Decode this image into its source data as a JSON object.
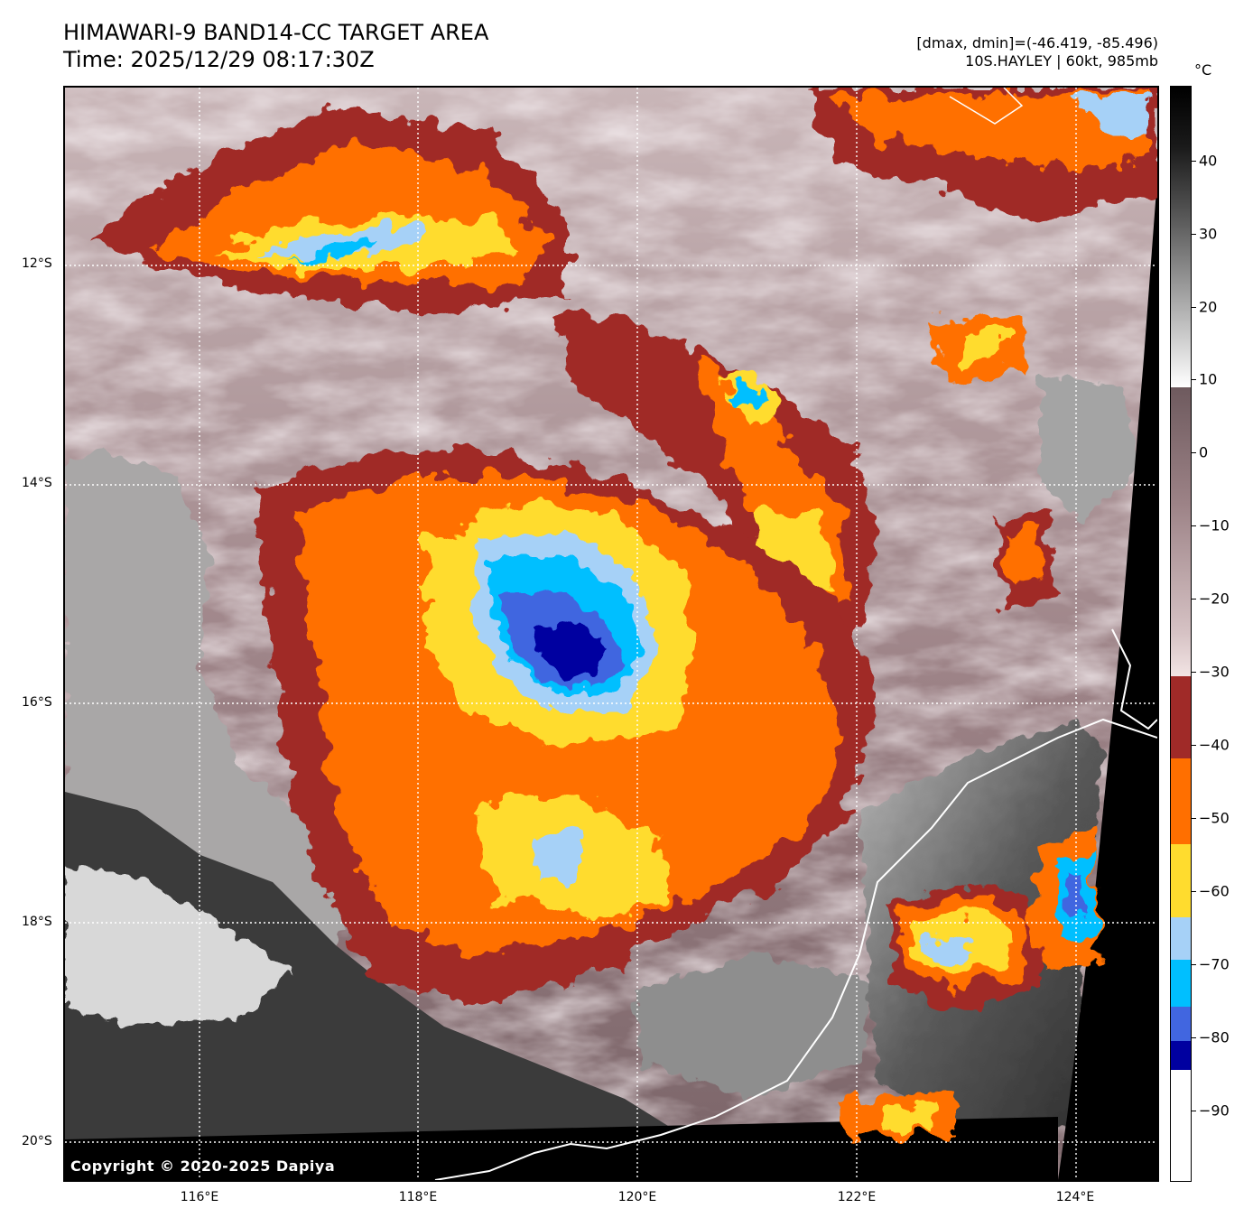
{
  "header": {
    "title_line1": "HIMAWARI-9 BAND14-CC TARGET AREA",
    "title_line2": "Time: 2025/12/29 08:17:30Z",
    "info_line1": "[dmax, dmin]=(-46.419, -85.496)",
    "info_line2": "10S.HAYLEY | 60kt, 985mb"
  },
  "map": {
    "copyright": "Copyright © 2020-2025 Dapiya",
    "lat_labels": [
      "12°S",
      "14°S",
      "16°S",
      "18°S",
      "20°S"
    ],
    "lon_labels": [
      "116°E",
      "118°E",
      "120°E",
      "122°E",
      "124°E"
    ]
  },
  "colorbar": {
    "unit": "°C",
    "tick_labels": [
      "40",
      "30",
      "20",
      "10",
      "0",
      "−10",
      "−20",
      "−30",
      "−40",
      "−50",
      "−60",
      "−70",
      "−80",
      "−90"
    ],
    "colors": {
      "minus30_to_minus40": "#a02a28",
      "minus40_to_minus50": "#ff6f00",
      "minus50_to_minus60": "#ffdc2e",
      "minus60_to_minus70": "#a6d1f7",
      "minus70_to_minus80": "#00bfff",
      "minus80_to_minus85": "#4166e0",
      "minus85_to_minus89": "#0000a0",
      "below_minus89": "#ffffff"
    }
  }
}
